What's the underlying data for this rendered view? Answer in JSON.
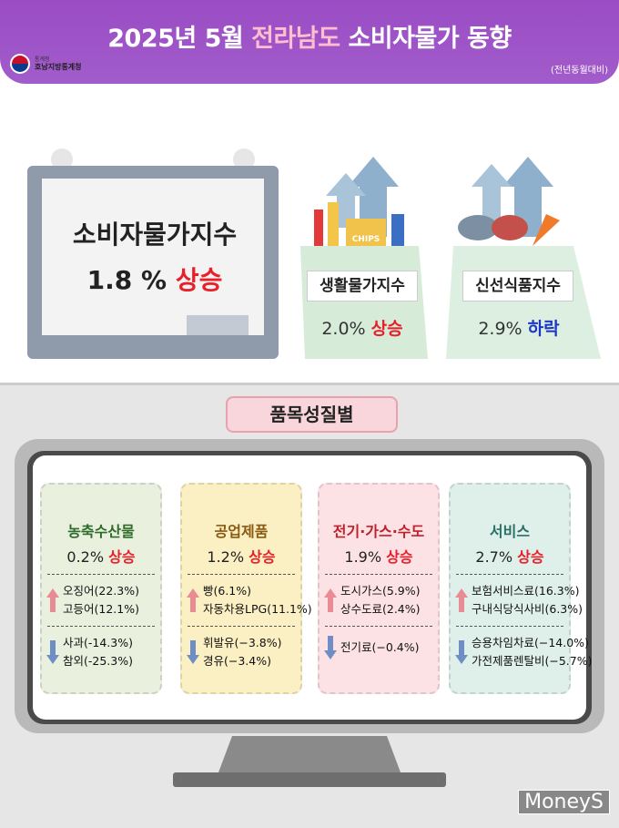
{
  "header": {
    "title_date": "2025년 5월",
    "title_region": "전라남도",
    "title_topic": "소비자물가 동향",
    "logo_agency": "통계청",
    "logo_office": "호남지방통계청",
    "note": "(전년동월대비)"
  },
  "summary": {
    "main": {
      "label": "소비자물가지수",
      "value": "1.8 %",
      "direction": "상승"
    },
    "cards": [
      {
        "label": "생활물가지수",
        "value": "2.0%",
        "direction": "상승",
        "bag_text": "CHIPS"
      },
      {
        "label": "신선식품지수",
        "value": "2.9%",
        "direction": "하락"
      }
    ]
  },
  "section_title": "품목성질별",
  "categories": [
    {
      "name": "농축수산물",
      "value": "0.2%",
      "direction": "상승",
      "up": [
        "오징어(22.3%)",
        "고등어(12.1%)"
      ],
      "down": [
        "사과(-14.3%)",
        "참외(-25.3%)"
      ]
    },
    {
      "name": "공업제품",
      "value": "1.2%",
      "direction": "상승",
      "up": [
        "빵(6.1%)",
        "자동차용LPG(11.1%)"
      ],
      "down": [
        "휘발유(−3.8%)",
        "경유(−3.4%)"
      ]
    },
    {
      "name": "전기·가스·수도",
      "value": "1.9%",
      "direction": "상승",
      "up": [
        "도시가스(5.9%)",
        "상수도료(2.4%)"
      ],
      "down": [
        "전기료(−0.4%)"
      ]
    },
    {
      "name": "서비스",
      "value": "2.7%",
      "direction": "상승",
      "up": [
        "보험서비스료(16.3%)",
        "구내식당식사비(6.3%)"
      ],
      "down": [
        "승용차임차료(−14.0%)",
        "가전제품렌탈비(−5.7%)"
      ]
    }
  ],
  "watermark": "MoneyS"
}
